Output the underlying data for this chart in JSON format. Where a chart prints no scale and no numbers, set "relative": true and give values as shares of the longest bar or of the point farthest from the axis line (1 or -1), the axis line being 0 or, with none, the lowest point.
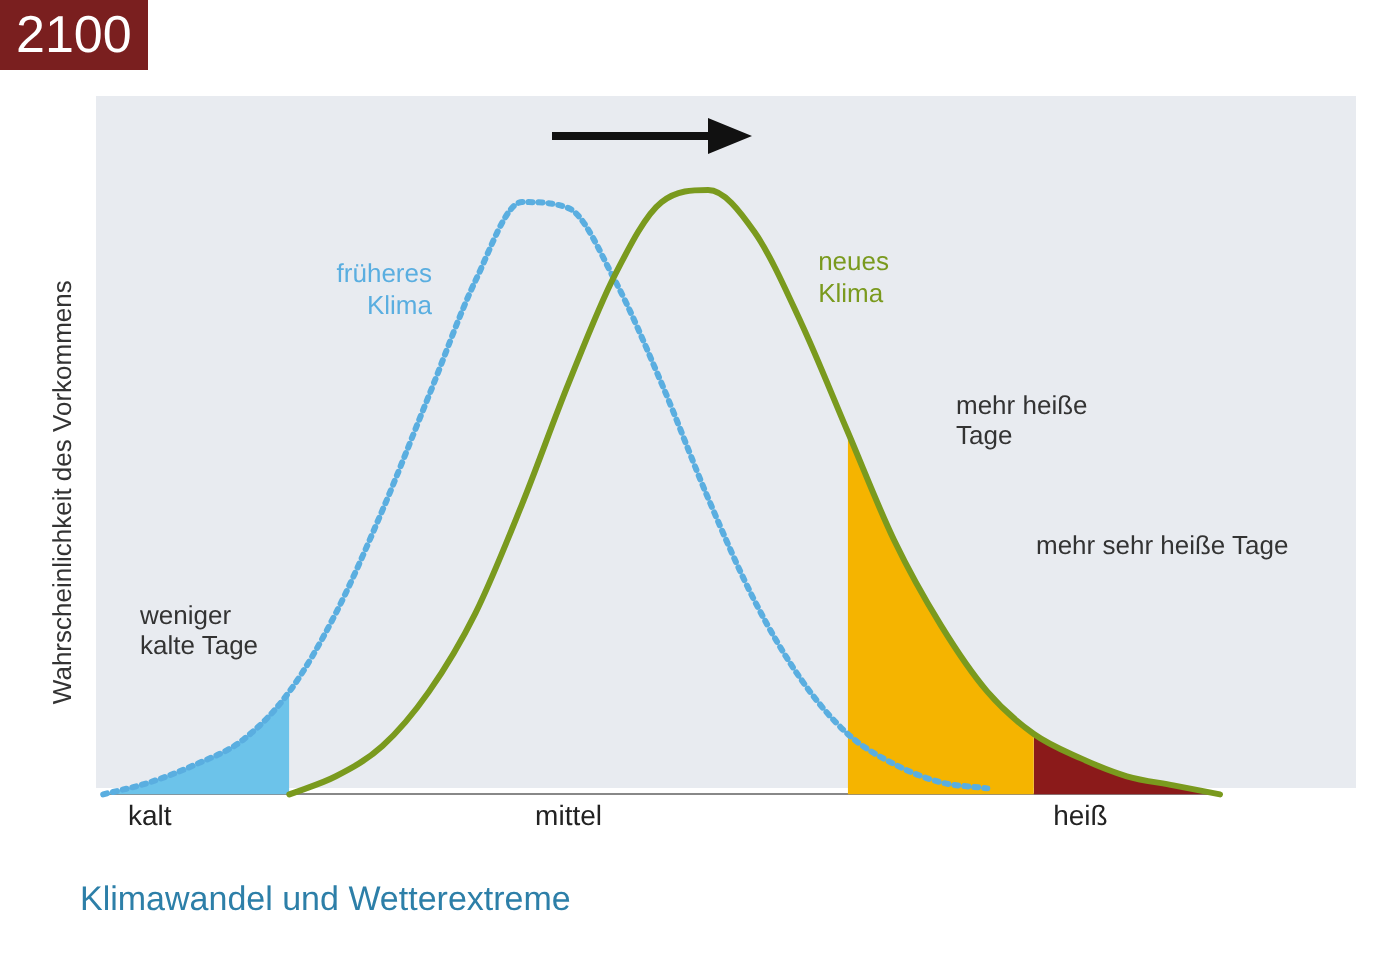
{
  "chart_data": {
    "type": "line",
    "title": "Klimawandel und Wetterextreme",
    "ylabel": "Wahrscheinlichkeit des Vorkommens",
    "relative": true,
    "grid": false,
    "legend": false,
    "categories": [
      null,
      "kalt",
      null,
      null,
      null,
      null,
      null,
      null,
      null,
      null,
      "mittel",
      null,
      null,
      null,
      null,
      null,
      null,
      null,
      null,
      null,
      null,
      "heiß",
      null,
      null,
      null
    ],
    "series": [
      {
        "type": "area",
        "color": "#6cc3ea",
        "values": [
          0.0,
          0.02,
          0.05,
          0.09,
          0.17,
          null,
          null,
          null,
          null,
          null,
          null,
          null,
          null,
          null,
          null,
          null,
          null,
          null,
          null,
          null,
          null,
          null,
          null,
          null,
          null
        ]
      },
      {
        "type": "area",
        "color": "#f5b400",
        "values": [
          null,
          null,
          null,
          null,
          null,
          null,
          null,
          null,
          null,
          null,
          null,
          null,
          null,
          null,
          null,
          null,
          0.6,
          0.42,
          0.28,
          0.17,
          0.1,
          null,
          null,
          null,
          null
        ]
      },
      {
        "type": "area",
        "color": "#8b1a1a",
        "values": [
          null,
          null,
          null,
          null,
          null,
          null,
          null,
          null,
          null,
          null,
          null,
          null,
          null,
          null,
          null,
          null,
          null,
          null,
          null,
          null,
          0.1,
          0.06,
          0.03,
          0.015,
          0.0
        ]
      },
      {
        "name": "früheres Klima",
        "color": "#5aaee0",
        "line_style": "dotted",
        "values": [
          0.0,
          0.02,
          0.05,
          0.09,
          0.17,
          0.3,
          0.47,
          0.66,
          0.85,
          0.98,
          0.97,
          0.85,
          0.68,
          0.49,
          0.32,
          0.19,
          0.1,
          0.05,
          0.02,
          0.01,
          null,
          null,
          null,
          null,
          null
        ]
      },
      {
        "name": "neues Klima",
        "color": "#7a9a1e",
        "line_style": "solid",
        "values": [
          null,
          null,
          null,
          null,
          0.0,
          0.03,
          0.08,
          0.17,
          0.3,
          0.48,
          0.68,
          0.86,
          0.98,
          1.0,
          0.93,
          0.78,
          0.6,
          0.42,
          0.28,
          0.17,
          0.1,
          0.06,
          0.03,
          0.015,
          0.0
        ]
      }
    ],
    "annotations": [
      "2100",
      "weniger kalte Tage",
      "mehr heiße Tage",
      "mehr sehr heiße Tage"
    ]
  }
}
